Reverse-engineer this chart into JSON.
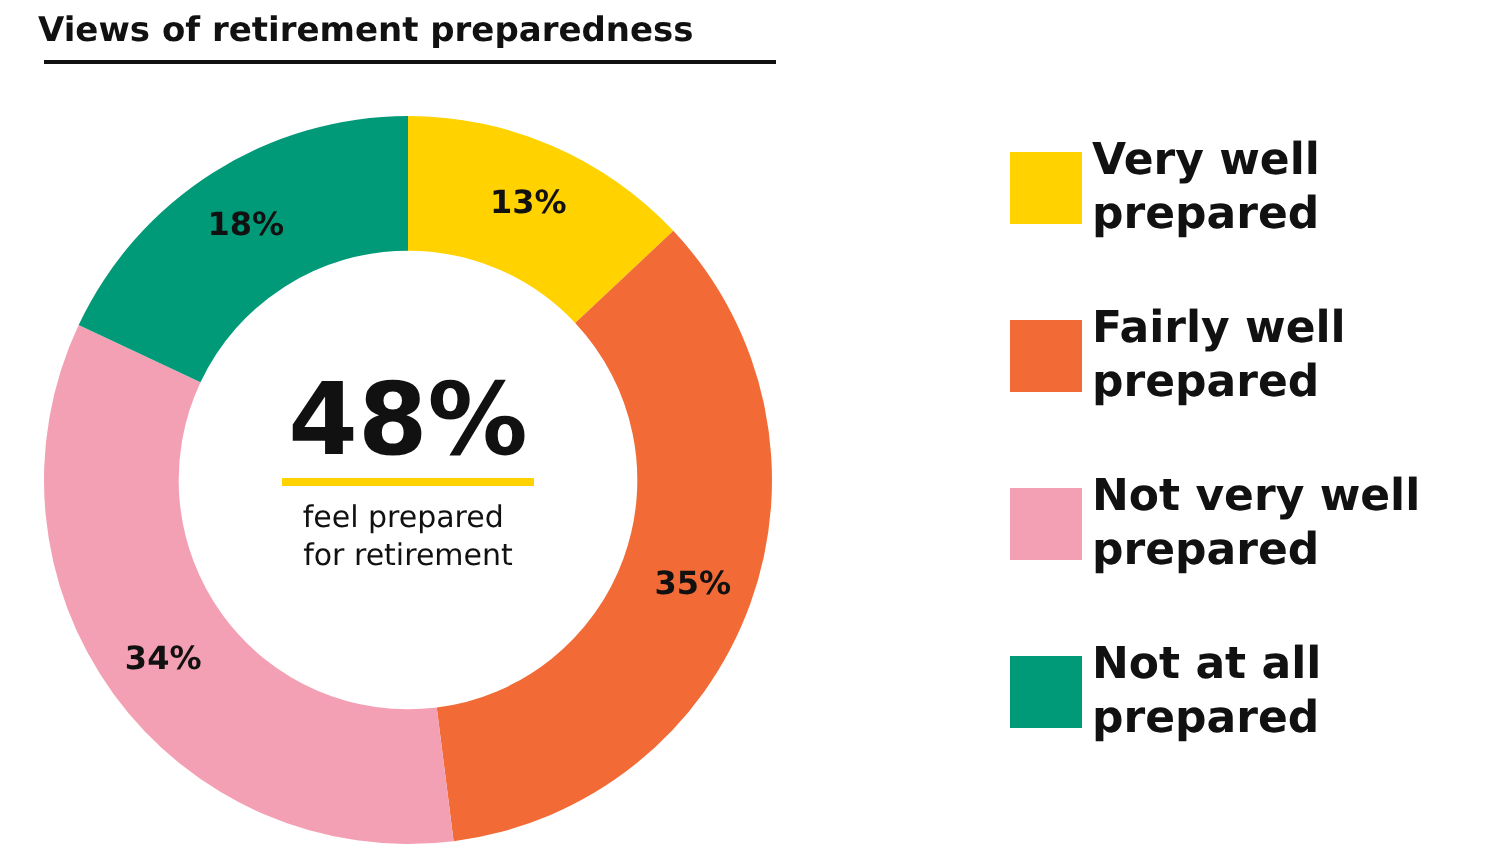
{
  "chart_data": {
    "type": "donut",
    "title": "Views of retirement preparedness",
    "categories": [
      "Very well prepared",
      "Fairly well prepared",
      "Not very well prepared",
      "Not at all prepared"
    ],
    "values": [
      13,
      35,
      34,
      18
    ],
    "colors": [
      "#ffd200",
      "#f26b36",
      "#f4a0b4",
      "#009a78"
    ],
    "value_labels": [
      "13%",
      "35%",
      "34%",
      "18%"
    ],
    "legend": "right",
    "annotations": [
      "48%",
      "feel prepared for retirement"
    ]
  }
}
